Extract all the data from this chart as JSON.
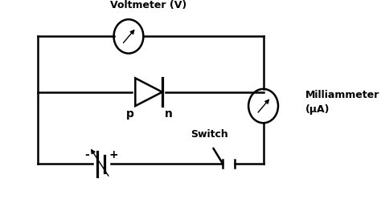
{
  "bg_color": "#ffffff",
  "line_color": "#000000",
  "line_width": 1.8,
  "voltmeter_label": "Voltmeter (V)",
  "milliammeter_label": "Milliammeter\n(μA)",
  "switch_label": "Switch",
  "p_label": "p",
  "n_label": "n",
  "minus_label": "-",
  "plus_label": "+"
}
